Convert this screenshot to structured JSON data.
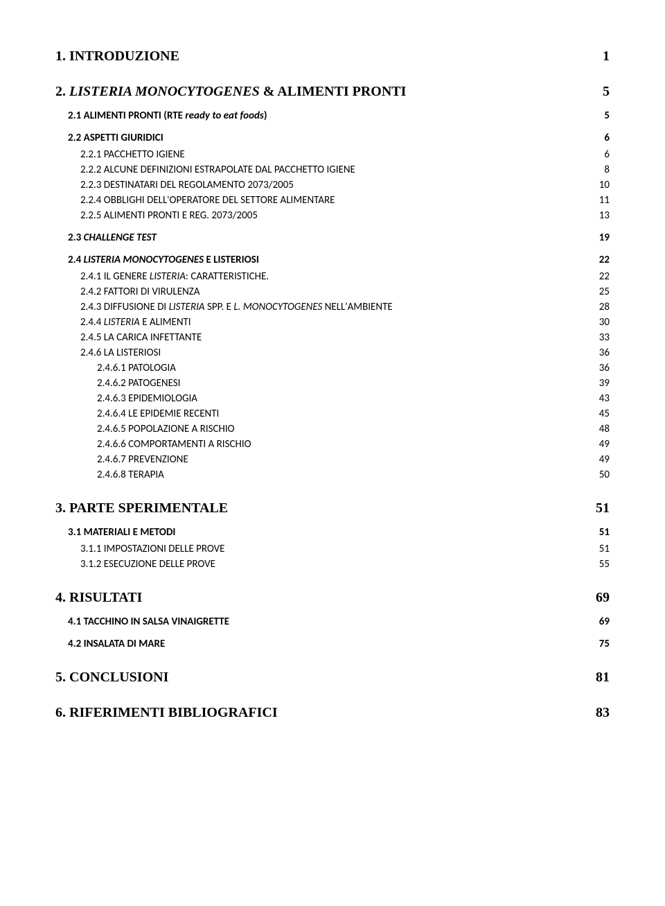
{
  "toc": [
    {
      "level": 0,
      "label": "1.    INTRODUZIONE",
      "page": "1"
    },
    {
      "level": 0,
      "label": "2.    <i>LISTERIA MONOCYTOGENES</i> & ALIMENTI PRONTI",
      "page": "5"
    },
    {
      "level": 1,
      "label": "2.1 ALIMENTI PRONTI (RTE <i>ready to eat foods</i>)",
      "page": " 5"
    },
    {
      "level": 1,
      "label": "2.2 ASPETTI GIURIDICI",
      "page": " 6"
    },
    {
      "level": 2,
      "label": "2.2.1 PACCHETTO IGIENE",
      "page": " 6"
    },
    {
      "level": 2,
      "label": "2.2.2 ALCUNE DEFINIZIONI ESTRAPOLATE DAL PACCHETTO IGIENE",
      "page": " 8"
    },
    {
      "level": 2,
      "label": "2.2.3 DESTINATARI DEL REGOLAMENTO 2073/2005",
      "page": " 10"
    },
    {
      "level": 2,
      "label": "2.2.4 OBBLIGHI DELL'OPERATORE DEL SETTORE ALIMENTARE",
      "page": " 11"
    },
    {
      "level": 2,
      "label": "2.2.5 ALIMENTI PRONTI E REG. 2073/2005",
      "page": " 13"
    },
    {
      "level": 1,
      "label": "2.3 <i>CHALLENGE TEST</i>",
      "page": "19"
    },
    {
      "level": 1,
      "label": "2.4 <i>LISTERIA MONOCYTOGENES</i> E LISTERIOSI",
      "page": "22"
    },
    {
      "level": 2,
      "label": "2.4.1 IL GENERE <i>LISTERIA</i>: CARATTERISTICHE. ",
      "page": " 22"
    },
    {
      "level": 2,
      "label": "2.4.2 FATTORI DI VIRULENZA",
      "page": " 25"
    },
    {
      "level": 2,
      "label": "2.4.3 DIFFUSIONE DI <i>LISTERIA</i> SPP. E <i>L. MONOCYTOGENES</i> NELL'AMBIENTE",
      "page": " 28"
    },
    {
      "level": 2,
      "label": "2.4.4 <i>LISTERIA</i> E ALIMENTI",
      "page": " 30"
    },
    {
      "level": 2,
      "label": "2.4.5 LA CARICA INFETTANTE",
      "page": " 33"
    },
    {
      "level": 2,
      "label": "2.4.6 LA LISTERIOSI",
      "page": " 36"
    },
    {
      "level": 3,
      "label": "2.4.6.1 PATOLOGIA",
      "page": " 36"
    },
    {
      "level": 3,
      "label": "2.4.6.2 PATOGENESI",
      "page": " 39"
    },
    {
      "level": 3,
      "label": "2.4.6.3 EPIDEMIOLOGIA",
      "page": " 43"
    },
    {
      "level": 3,
      "label": "2.4.6.4 LE EPIDEMIE RECENTI",
      "page": " 45"
    },
    {
      "level": 3,
      "label": "2.4.6.5 POPOLAZIONE A RISCHIO",
      "page": " 48"
    },
    {
      "level": 3,
      "label": "2.4.6.6 COMPORTAMENTI A RISCHIO",
      "page": " 49"
    },
    {
      "level": 3,
      "label": "2.4.6.7 PREVENZIONE",
      "page": " 49"
    },
    {
      "level": 3,
      "label": "2.4.6.8 TERAPIA",
      "page": " 50"
    },
    {
      "level": 0,
      "label": "3.    PARTE SPERIMENTALE",
      "page": " 51"
    },
    {
      "level": 1,
      "label": "3.1 MATERIALI E METODI",
      "page": "51"
    },
    {
      "level": 2,
      "label": "3.1.1 IMPOSTAZIONI DELLE PROVE",
      "page": " 51"
    },
    {
      "level": 2,
      "label": "3.1.2 ESECUZIONE DELLE PROVE",
      "page": " 55"
    },
    {
      "level": 0,
      "label": "4.    RISULTATI",
      "page": " 69"
    },
    {
      "level": 1,
      "label": "4.1 TACCHINO IN SALSA VINAIGRETTE",
      "page": "69"
    },
    {
      "level": 1,
      "label": "4.2 INSALATA DI MARE",
      "page": "75"
    },
    {
      "level": 0,
      "label": "5.    CONCLUSIONI",
      "page": " 81"
    },
    {
      "level": 0,
      "label": "6.    RIFERIMENTI BIBLIOGRAFICI",
      "page": " 83"
    }
  ],
  "styles": {
    "textColor": "#000000",
    "background": "#ffffff",
    "dotLetterSpacing": 2
  }
}
